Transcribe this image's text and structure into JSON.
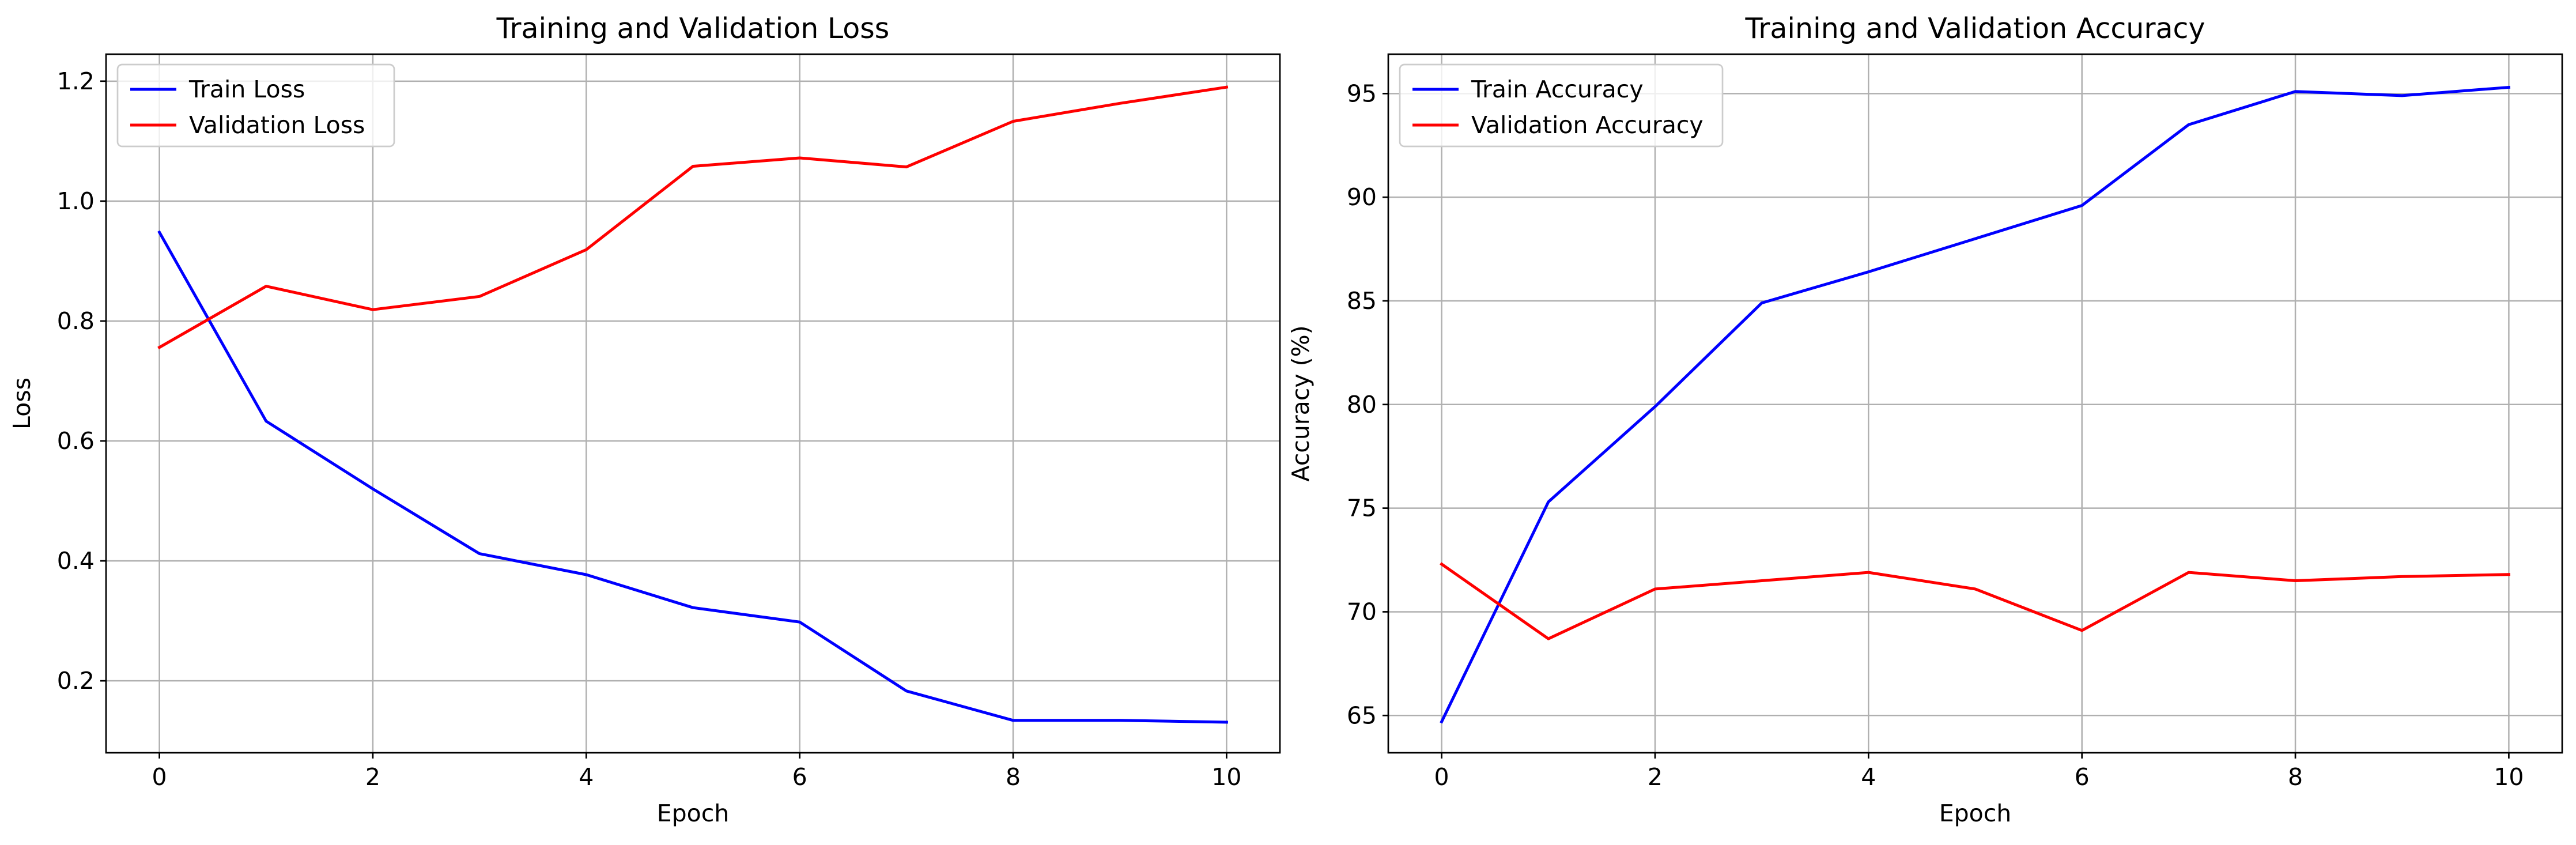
{
  "chart_data": [
    {
      "type": "line",
      "title": "Training and Validation Loss",
      "xlabel": "Epoch",
      "ylabel": "Loss",
      "xlim": [
        -0.5,
        10.5
      ],
      "ylim": [
        0.08,
        1.245
      ],
      "xticks": [
        0,
        2,
        4,
        6,
        8,
        10
      ],
      "xtick_labels": [
        "0",
        "2",
        "4",
        "6",
        "8",
        "10"
      ],
      "yticks": [
        0.2,
        0.4,
        0.6,
        0.8,
        1.0,
        1.2
      ],
      "ytick_labels": [
        "0.2",
        "0.4",
        "0.6",
        "0.8",
        "1.0",
        "1.2"
      ],
      "grid": true,
      "legend_position": "upper-left",
      "x": [
        0,
        1,
        2,
        3,
        4,
        5,
        6,
        7,
        8,
        9,
        10
      ],
      "series": [
        {
          "name": "Train Loss",
          "color": "#0000ff",
          "values": [
            0.948,
            0.633,
            0.52,
            0.412,
            0.377,
            0.322,
            0.298,
            0.183,
            0.134,
            0.134,
            0.131
          ]
        },
        {
          "name": "Validation Loss",
          "color": "#ff0000",
          "values": [
            0.756,
            0.858,
            0.819,
            0.841,
            0.919,
            1.058,
            1.072,
            1.057,
            1.133,
            1.163,
            1.19
          ]
        }
      ]
    },
    {
      "type": "line",
      "title": "Training and Validation Accuracy",
      "xlabel": "Epoch",
      "ylabel": "Accuracy (%)",
      "xlim": [
        -0.5,
        10.5
      ],
      "ylim": [
        63.2,
        96.9
      ],
      "xticks": [
        0,
        2,
        4,
        6,
        8,
        10
      ],
      "xtick_labels": [
        "0",
        "2",
        "4",
        "6",
        "8",
        "10"
      ],
      "yticks": [
        65,
        70,
        75,
        80,
        85,
        90,
        95
      ],
      "ytick_labels": [
        "65",
        "70",
        "75",
        "80",
        "85",
        "90",
        "95"
      ],
      "grid": true,
      "legend_position": "upper-left",
      "x": [
        0,
        1,
        2,
        3,
        4,
        5,
        6,
        7,
        8,
        9,
        10
      ],
      "series": [
        {
          "name": "Train Accuracy",
          "color": "#0000ff",
          "values": [
            64.7,
            75.3,
            79.9,
            84.9,
            86.4,
            88.0,
            89.6,
            93.5,
            95.1,
            94.9,
            95.3
          ]
        },
        {
          "name": "Validation Accuracy",
          "color": "#ff0000",
          "values": [
            72.3,
            68.7,
            71.1,
            71.5,
            71.9,
            71.1,
            69.1,
            71.9,
            71.5,
            71.7,
            71.8
          ]
        }
      ]
    }
  ]
}
